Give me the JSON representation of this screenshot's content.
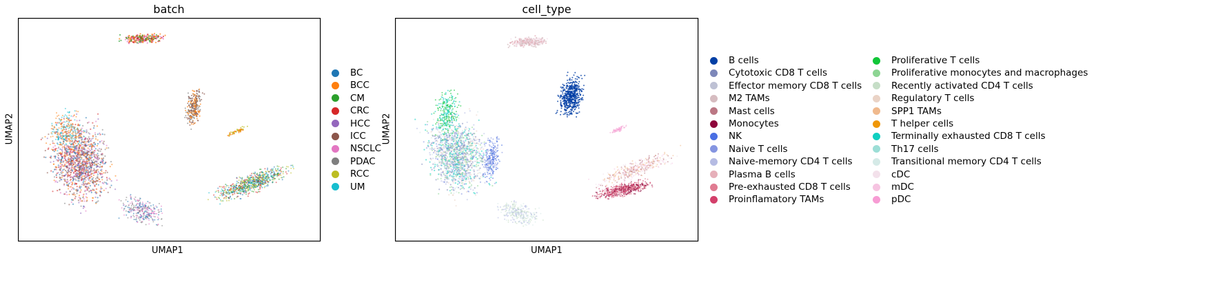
{
  "chart_data": [
    {
      "type": "scatter",
      "title": "batch",
      "xlabel": "UMAP1",
      "ylabel": "UMAP2",
      "grid": false,
      "legend_position": "right",
      "categories": [
        "BC",
        "BCC",
        "CM",
        "CRC",
        "HCC",
        "ICC",
        "NSCLC",
        "PDAC",
        "RCC",
        "UM"
      ],
      "colors": [
        "#1f77b4",
        "#ff7f0e",
        "#2ca02c",
        "#d62728",
        "#9467bd",
        "#8c564b",
        "#e377c2",
        "#7f7f7f",
        "#bcbd22",
        "#17becf"
      ]
    },
    {
      "type": "scatter",
      "title": "cell_type",
      "xlabel": "UMAP1",
      "ylabel": "UMAP2",
      "grid": false,
      "legend_position": "right",
      "categories": [
        "B cells",
        "Cytotoxic CD8 T cells",
        "Effector memory CD8 T cells",
        "M2 TAMs",
        "Mast cells",
        "Monocytes",
        "NK",
        "Naive T cells",
        "Naive-memory CD4 T cells",
        "Plasma B cells",
        "Pre-exhausted CD8 T cells",
        "Proinflamatory TAMs",
        "Proliferative T cells",
        "Proliferative monocytes and macrophages",
        "Recently activated CD4 T cells",
        "Regulatory T cells",
        "SPP1 TAMs",
        "T helper cells",
        "Terminally exhausted CD8 T cells",
        "Th17 cells",
        "Transitional memory CD4 T cells",
        "cDC",
        "mDC",
        "pDC"
      ],
      "colors": [
        "#023fa5",
        "#7d87b9",
        "#bec1d4",
        "#d6bcc0",
        "#bb7784",
        "#8e063b",
        "#4a6fe3",
        "#8595e1",
        "#b5bbe3",
        "#e6afb9",
        "#e07b91",
        "#d33f6a",
        "#11c638",
        "#8dd593",
        "#c6dec7",
        "#ead3c6",
        "#f0b98d",
        "#ef9708",
        "#0fcfc0",
        "#9cded6",
        "#d5eae7",
        "#f3e1eb",
        "#f6c4e1",
        "#f79cd4"
      ]
    }
  ]
}
